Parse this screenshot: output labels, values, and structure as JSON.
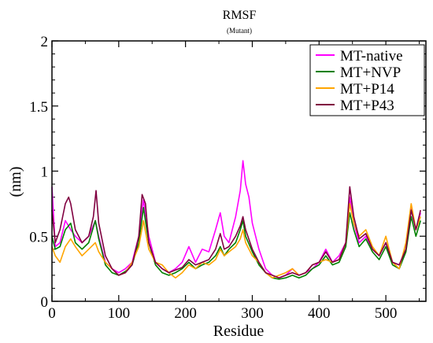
{
  "chart_data": {
    "type": "line",
    "title": "RMSF",
    "subtitle": "(Mutant)",
    "xlabel": "Residue",
    "ylabel": "(nm)",
    "xlim": [
      0,
      560
    ],
    "ylim": [
      0,
      2
    ],
    "xticks": [
      0,
      100,
      200,
      300,
      400,
      500
    ],
    "xtick_labels": [
      "0",
      "100",
      "200",
      "300",
      "400",
      "500"
    ],
    "yticks": [
      0,
      0.5,
      1,
      1.5,
      2
    ],
    "ytick_labels": [
      "0",
      "0.5",
      "1",
      "1.5",
      "2"
    ],
    "grid": false,
    "legend_position": "top-right",
    "series": [
      {
        "name": "MT-native",
        "color": "#ff00ff",
        "points": [
          [
            0,
            0.88
          ],
          [
            5,
            0.42
          ],
          [
            12,
            0.45
          ],
          [
            20,
            0.62
          ],
          [
            28,
            0.55
          ],
          [
            35,
            0.5
          ],
          [
            45,
            0.45
          ],
          [
            55,
            0.5
          ],
          [
            65,
            0.62
          ],
          [
            70,
            0.5
          ],
          [
            80,
            0.3
          ],
          [
            90,
            0.25
          ],
          [
            100,
            0.22
          ],
          [
            110,
            0.25
          ],
          [
            120,
            0.3
          ],
          [
            130,
            0.5
          ],
          [
            137,
            0.78
          ],
          [
            145,
            0.5
          ],
          [
            155,
            0.3
          ],
          [
            165,
            0.25
          ],
          [
            175,
            0.22
          ],
          [
            185,
            0.25
          ],
          [
            195,
            0.3
          ],
          [
            205,
            0.42
          ],
          [
            215,
            0.3
          ],
          [
            225,
            0.4
          ],
          [
            235,
            0.38
          ],
          [
            245,
            0.55
          ],
          [
            252,
            0.68
          ],
          [
            258,
            0.5
          ],
          [
            265,
            0.45
          ],
          [
            275,
            0.65
          ],
          [
            282,
            0.85
          ],
          [
            286,
            1.08
          ],
          [
            290,
            0.9
          ],
          [
            295,
            0.8
          ],
          [
            300,
            0.6
          ],
          [
            310,
            0.4
          ],
          [
            320,
            0.25
          ],
          [
            330,
            0.2
          ],
          [
            340,
            0.18
          ],
          [
            350,
            0.2
          ],
          [
            360,
            0.25
          ],
          [
            370,
            0.2
          ],
          [
            380,
            0.22
          ],
          [
            390,
            0.25
          ],
          [
            400,
            0.3
          ],
          [
            410,
            0.4
          ],
          [
            420,
            0.3
          ],
          [
            430,
            0.35
          ],
          [
            440,
            0.45
          ],
          [
            446,
            0.8
          ],
          [
            452,
            0.6
          ],
          [
            460,
            0.45
          ],
          [
            470,
            0.5
          ],
          [
            480,
            0.4
          ],
          [
            490,
            0.35
          ],
          [
            500,
            0.45
          ],
          [
            510,
            0.3
          ],
          [
            520,
            0.28
          ],
          [
            530,
            0.4
          ],
          [
            538,
            0.72
          ],
          [
            545,
            0.55
          ],
          [
            552,
            0.68
          ]
        ]
      },
      {
        "name": "MT+NVP",
        "color": "#008000",
        "points": [
          [
            0,
            0.5
          ],
          [
            5,
            0.4
          ],
          [
            12,
            0.42
          ],
          [
            20,
            0.55
          ],
          [
            28,
            0.6
          ],
          [
            35,
            0.45
          ],
          [
            45,
            0.4
          ],
          [
            55,
            0.45
          ],
          [
            65,
            0.62
          ],
          [
            70,
            0.48
          ],
          [
            80,
            0.28
          ],
          [
            90,
            0.22
          ],
          [
            100,
            0.2
          ],
          [
            110,
            0.23
          ],
          [
            120,
            0.28
          ],
          [
            130,
            0.45
          ],
          [
            137,
            0.72
          ],
          [
            145,
            0.45
          ],
          [
            155,
            0.28
          ],
          [
            165,
            0.22
          ],
          [
            175,
            0.2
          ],
          [
            185,
            0.22
          ],
          [
            195,
            0.25
          ],
          [
            205,
            0.3
          ],
          [
            215,
            0.25
          ],
          [
            225,
            0.28
          ],
          [
            235,
            0.3
          ],
          [
            245,
            0.35
          ],
          [
            252,
            0.42
          ],
          [
            258,
            0.35
          ],
          [
            265,
            0.4
          ],
          [
            275,
            0.45
          ],
          [
            282,
            0.55
          ],
          [
            286,
            0.62
          ],
          [
            290,
            0.5
          ],
          [
            300,
            0.38
          ],
          [
            310,
            0.28
          ],
          [
            320,
            0.22
          ],
          [
            330,
            0.18
          ],
          [
            340,
            0.17
          ],
          [
            350,
            0.18
          ],
          [
            360,
            0.2
          ],
          [
            370,
            0.18
          ],
          [
            380,
            0.2
          ],
          [
            390,
            0.25
          ],
          [
            400,
            0.28
          ],
          [
            410,
            0.35
          ],
          [
            420,
            0.28
          ],
          [
            430,
            0.3
          ],
          [
            440,
            0.42
          ],
          [
            446,
            0.68
          ],
          [
            452,
            0.55
          ],
          [
            460,
            0.42
          ],
          [
            470,
            0.48
          ],
          [
            480,
            0.38
          ],
          [
            490,
            0.32
          ],
          [
            500,
            0.42
          ],
          [
            510,
            0.28
          ],
          [
            520,
            0.25
          ],
          [
            530,
            0.38
          ],
          [
            538,
            0.65
          ],
          [
            545,
            0.5
          ],
          [
            552,
            0.62
          ]
        ]
      },
      {
        "name": "MT+P14",
        "color": "#ffa500",
        "points": [
          [
            0,
            0.42
          ],
          [
            5,
            0.35
          ],
          [
            12,
            0.3
          ],
          [
            20,
            0.42
          ],
          [
            28,
            0.48
          ],
          [
            35,
            0.42
          ],
          [
            45,
            0.35
          ],
          [
            55,
            0.4
          ],
          [
            65,
            0.45
          ],
          [
            70,
            0.38
          ],
          [
            80,
            0.3
          ],
          [
            90,
            0.25
          ],
          [
            100,
            0.2
          ],
          [
            110,
            0.22
          ],
          [
            120,
            0.3
          ],
          [
            130,
            0.42
          ],
          [
            137,
            0.62
          ],
          [
            145,
            0.4
          ],
          [
            155,
            0.3
          ],
          [
            165,
            0.28
          ],
          [
            175,
            0.22
          ],
          [
            185,
            0.18
          ],
          [
            195,
            0.22
          ],
          [
            205,
            0.28
          ],
          [
            215,
            0.25
          ],
          [
            225,
            0.3
          ],
          [
            235,
            0.28
          ],
          [
            245,
            0.32
          ],
          [
            252,
            0.4
          ],
          [
            258,
            0.35
          ],
          [
            265,
            0.38
          ],
          [
            275,
            0.42
          ],
          [
            282,
            0.48
          ],
          [
            286,
            0.55
          ],
          [
            290,
            0.45
          ],
          [
            300,
            0.35
          ],
          [
            310,
            0.3
          ],
          [
            320,
            0.22
          ],
          [
            330,
            0.18
          ],
          [
            340,
            0.2
          ],
          [
            350,
            0.22
          ],
          [
            360,
            0.25
          ],
          [
            370,
            0.2
          ],
          [
            380,
            0.22
          ],
          [
            390,
            0.28
          ],
          [
            400,
            0.3
          ],
          [
            410,
            0.32
          ],
          [
            420,
            0.3
          ],
          [
            430,
            0.32
          ],
          [
            440,
            0.45
          ],
          [
            446,
            0.75
          ],
          [
            452,
            0.6
          ],
          [
            460,
            0.5
          ],
          [
            470,
            0.55
          ],
          [
            480,
            0.42
          ],
          [
            490,
            0.35
          ],
          [
            500,
            0.5
          ],
          [
            510,
            0.3
          ],
          [
            520,
            0.25
          ],
          [
            530,
            0.45
          ],
          [
            538,
            0.75
          ],
          [
            545,
            0.55
          ],
          [
            552,
            0.65
          ]
        ]
      },
      {
        "name": "MT+P43",
        "color": "#800040",
        "points": [
          [
            0,
            0.7
          ],
          [
            5,
            0.45
          ],
          [
            12,
            0.55
          ],
          [
            20,
            0.75
          ],
          [
            25,
            0.8
          ],
          [
            28,
            0.75
          ],
          [
            35,
            0.55
          ],
          [
            45,
            0.45
          ],
          [
            55,
            0.5
          ],
          [
            62,
            0.65
          ],
          [
            66,
            0.85
          ],
          [
            70,
            0.6
          ],
          [
            80,
            0.35
          ],
          [
            90,
            0.25
          ],
          [
            100,
            0.2
          ],
          [
            110,
            0.22
          ],
          [
            120,
            0.28
          ],
          [
            130,
            0.5
          ],
          [
            135,
            0.82
          ],
          [
            140,
            0.75
          ],
          [
            145,
            0.45
          ],
          [
            155,
            0.3
          ],
          [
            165,
            0.25
          ],
          [
            175,
            0.22
          ],
          [
            185,
            0.24
          ],
          [
            195,
            0.26
          ],
          [
            205,
            0.32
          ],
          [
            215,
            0.28
          ],
          [
            225,
            0.3
          ],
          [
            235,
            0.32
          ],
          [
            245,
            0.4
          ],
          [
            252,
            0.52
          ],
          [
            258,
            0.4
          ],
          [
            265,
            0.42
          ],
          [
            275,
            0.5
          ],
          [
            282,
            0.58
          ],
          [
            286,
            0.65
          ],
          [
            290,
            0.55
          ],
          [
            300,
            0.4
          ],
          [
            310,
            0.3
          ],
          [
            320,
            0.22
          ],
          [
            330,
            0.2
          ],
          [
            340,
            0.18
          ],
          [
            350,
            0.2
          ],
          [
            360,
            0.22
          ],
          [
            370,
            0.2
          ],
          [
            380,
            0.22
          ],
          [
            390,
            0.28
          ],
          [
            400,
            0.3
          ],
          [
            410,
            0.38
          ],
          [
            420,
            0.3
          ],
          [
            430,
            0.32
          ],
          [
            440,
            0.45
          ],
          [
            446,
            0.88
          ],
          [
            452,
            0.65
          ],
          [
            460,
            0.48
          ],
          [
            470,
            0.52
          ],
          [
            480,
            0.4
          ],
          [
            490,
            0.35
          ],
          [
            500,
            0.45
          ],
          [
            510,
            0.3
          ],
          [
            520,
            0.28
          ],
          [
            530,
            0.4
          ],
          [
            538,
            0.7
          ],
          [
            545,
            0.55
          ],
          [
            552,
            0.7
          ]
        ]
      }
    ]
  }
}
